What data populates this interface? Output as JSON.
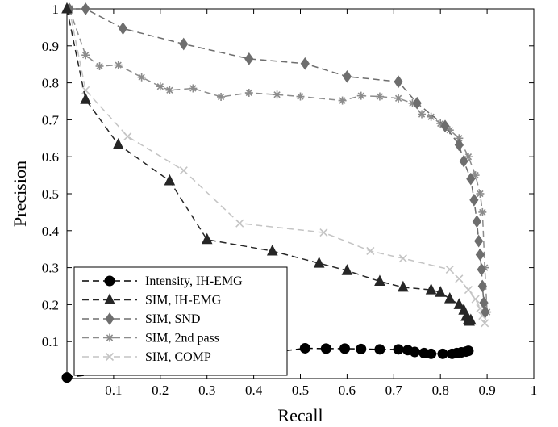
{
  "chart_data": {
    "type": "line",
    "xlabel": "Recall",
    "ylabel": "Precision",
    "xlim": [
      0,
      1
    ],
    "ylim": [
      0,
      1
    ],
    "xticks": [
      0.1,
      0.2,
      0.3,
      0.4,
      0.5,
      0.6,
      0.7,
      0.8,
      0.9,
      1
    ],
    "xtick_labels": [
      "0.1",
      "0.2",
      "0.3",
      "0.4",
      "0.5",
      "0.6",
      "0.7",
      "0.8",
      "0.9",
      "1"
    ],
    "yticks": [
      0.1,
      0.2,
      0.3,
      0.4,
      0.5,
      0.6,
      0.7,
      0.8,
      0.9,
      1
    ],
    "ytick_labels": [
      "0.1",
      "0.2",
      "0.3",
      "0.4",
      "0.5",
      "0.6",
      "0.7",
      "0.8",
      "0.9",
      "1"
    ],
    "grid": false,
    "legend_position": "bottom-left",
    "series": [
      {
        "name": "Intensity, IH-EMG",
        "color": "#000000",
        "marker": "circle",
        "dash": "dashed",
        "x": [
          0,
          0.51,
          0.555,
          0.595,
          0.63,
          0.67,
          0.71,
          0.73,
          0.745,
          0.765,
          0.78,
          0.805,
          0.825,
          0.835,
          0.845,
          0.855,
          0.86
        ],
        "y": [
          0.003,
          0.082,
          0.081,
          0.081,
          0.08,
          0.079,
          0.079,
          0.077,
          0.072,
          0.069,
          0.067,
          0.067,
          0.067,
          0.069,
          0.071,
          0.073,
          0.075
        ]
      },
      {
        "name": "SIM, IH-EMG",
        "color": "#262626",
        "marker": "triangle",
        "dash": "dashed",
        "x": [
          0,
          0.04,
          0.11,
          0.22,
          0.3,
          0.44,
          0.54,
          0.6,
          0.67,
          0.72,
          0.78,
          0.8,
          0.82,
          0.84,
          0.85,
          0.855,
          0.86,
          0.862,
          0.865
        ],
        "y": [
          1.0,
          0.755,
          0.633,
          0.535,
          0.376,
          0.345,
          0.312,
          0.292,
          0.263,
          0.247,
          0.24,
          0.233,
          0.216,
          0.2,
          0.185,
          0.168,
          0.16,
          0.155,
          0.158
        ]
      },
      {
        "name": "SIM, SND",
        "color": "#6e6e6e",
        "marker": "diamond",
        "dash": "dashed",
        "x": [
          0.005,
          0.04,
          0.12,
          0.25,
          0.39,
          0.51,
          0.6,
          0.71,
          0.75,
          0.81,
          0.84,
          0.85,
          0.865,
          0.872,
          0.878,
          0.882,
          0.885,
          0.888,
          0.89,
          0.893,
          0.896
        ],
        "y": [
          1.0,
          1.0,
          0.947,
          0.905,
          0.865,
          0.852,
          0.817,
          0.803,
          0.745,
          0.683,
          0.632,
          0.588,
          0.54,
          0.483,
          0.425,
          0.372,
          0.335,
          0.295,
          0.25,
          0.205,
          0.18
        ]
      },
      {
        "name": "SIM, 2nd pass",
        "color": "#8c8c8c",
        "marker": "star",
        "dash": "dashed",
        "x": [
          0.005,
          0.04,
          0.07,
          0.11,
          0.16,
          0.2,
          0.22,
          0.27,
          0.33,
          0.39,
          0.45,
          0.5,
          0.59,
          0.63,
          0.67,
          0.71,
          0.74,
          0.76,
          0.78,
          0.8,
          0.82,
          0.84,
          0.86,
          0.875,
          0.885,
          0.89,
          0.895,
          0.9
        ],
        "y": [
          1.0,
          0.875,
          0.845,
          0.848,
          0.815,
          0.79,
          0.78,
          0.785,
          0.762,
          0.773,
          0.768,
          0.763,
          0.752,
          0.765,
          0.763,
          0.758,
          0.745,
          0.715,
          0.708,
          0.69,
          0.672,
          0.65,
          0.6,
          0.55,
          0.5,
          0.45,
          0.3,
          0.18
        ]
      },
      {
        "name": "SIM, COMP",
        "color": "#c4c4c4",
        "marker": "x",
        "dash": "dashed",
        "x": [
          0.005,
          0.04,
          0.13,
          0.25,
          0.37,
          0.55,
          0.65,
          0.72,
          0.82,
          0.84,
          0.86,
          0.875,
          0.885,
          0.89,
          0.895
        ],
        "y": [
          1.0,
          0.78,
          0.655,
          0.563,
          0.42,
          0.395,
          0.345,
          0.325,
          0.295,
          0.27,
          0.24,
          0.215,
          0.19,
          0.17,
          0.15
        ]
      }
    ]
  }
}
